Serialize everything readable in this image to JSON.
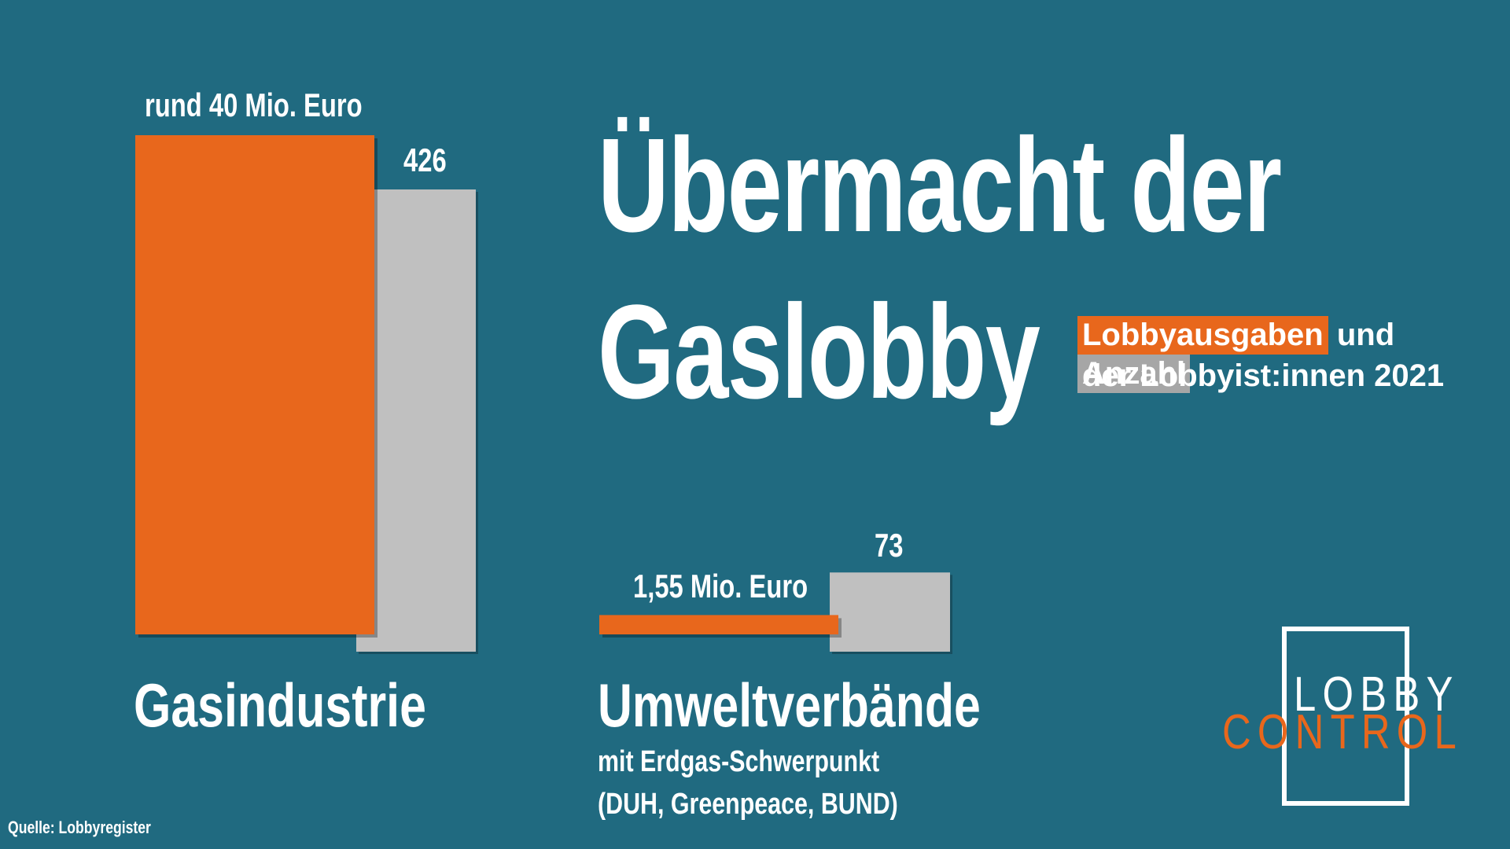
{
  "title_line1": "Übermacht der",
  "title_line2": "Gaslobby",
  "subtitle": {
    "spending": "Lobbyausgaben",
    "and": "und",
    "count": "Anzahl",
    "line2": "der Lobbyist:innen 2021"
  },
  "colors": {
    "background": "#206a80",
    "spending": "#e8671c",
    "count": "#c0c0c0"
  },
  "chart_data": {
    "type": "bar",
    "categories": [
      "Gasindustrie",
      "Umweltverbände"
    ],
    "series": [
      {
        "name": "Lobbyausgaben",
        "unit": "Mio. Euro",
        "values": [
          40,
          1.55
        ],
        "labels": [
          "rund 40 Mio. Euro",
          "1,55 Mio. Euro"
        ]
      },
      {
        "name": "Anzahl",
        "values": [
          426,
          73
        ],
        "labels": [
          "426",
          "73"
        ]
      }
    ]
  },
  "groups": {
    "gas": {
      "label": "Gasindustrie"
    },
    "env": {
      "label": "Umweltverbände",
      "sub1": "mit Erdgas-Schwerpunkt",
      "sub2": "(DUH, Greenpeace, BUND)"
    }
  },
  "source": "Quelle: Lobbyregister",
  "logo": {
    "line1": "LOBBY",
    "line2": "CONTROL"
  }
}
